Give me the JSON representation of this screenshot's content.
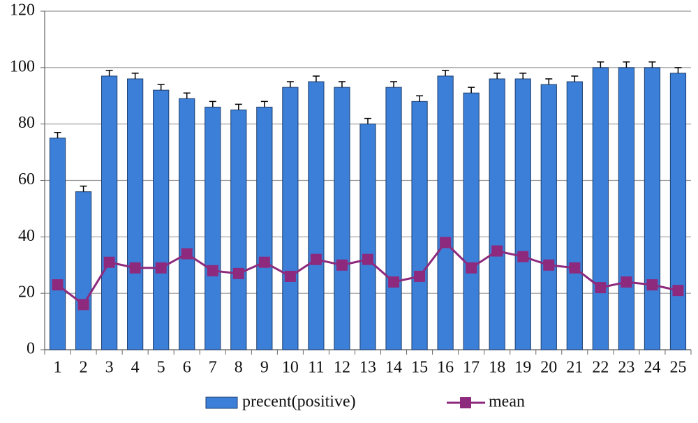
{
  "chart_data": {
    "type": "bar",
    "categories": [
      "1",
      "2",
      "3",
      "4",
      "5",
      "6",
      "7",
      "8",
      "9",
      "10",
      "11",
      "12",
      "13",
      "14",
      "15",
      "16",
      "17",
      "18",
      "19",
      "20",
      "21",
      "22",
      "23",
      "24",
      "25"
    ],
    "series": [
      {
        "name": "precent(positive)",
        "type": "bar",
        "color": "#3b7fd8",
        "values": [
          75,
          56,
          97,
          96,
          92,
          89,
          86,
          85,
          86,
          93,
          95,
          93,
          80,
          93,
          88,
          97,
          91,
          96,
          96,
          94,
          95,
          100,
          100,
          100,
          98
        ],
        "errors": [
          2,
          2,
          2,
          2,
          2,
          2,
          2,
          2,
          2,
          2,
          2,
          2,
          2,
          2,
          2,
          2,
          2,
          2,
          2,
          2,
          2,
          2,
          2,
          2,
          2
        ]
      },
      {
        "name": "mean",
        "type": "line",
        "color": "#8e2a7e",
        "values": [
          23,
          16,
          31,
          29,
          29,
          34,
          28,
          27,
          31,
          26,
          32,
          30,
          32,
          24,
          26,
          38,
          29,
          35,
          33,
          30,
          29,
          22,
          24,
          23,
          21
        ]
      }
    ],
    "ylim": [
      0,
      120
    ],
    "yticks": [
      0,
      20,
      40,
      60,
      80,
      100,
      120
    ],
    "grid": true,
    "legend": "bottom"
  }
}
